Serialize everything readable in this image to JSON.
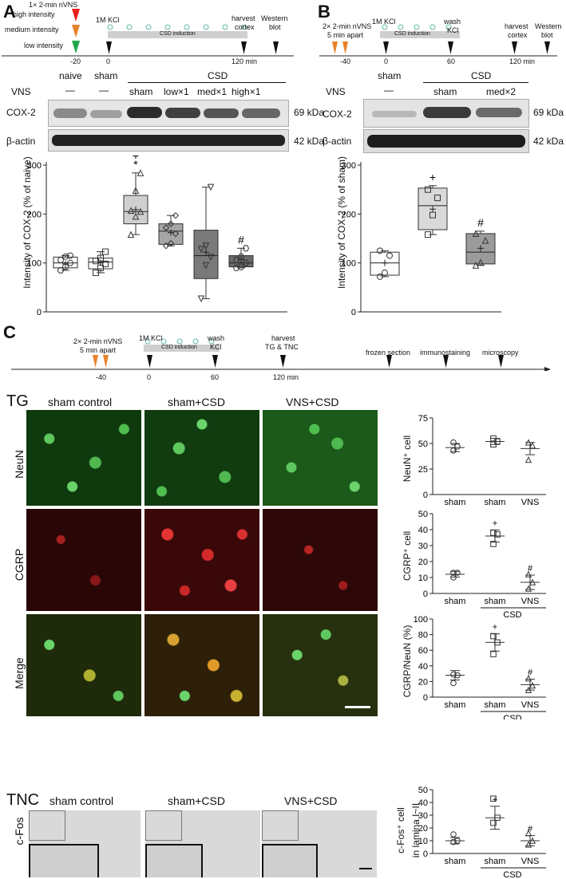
{
  "panelA": {
    "letter": "A",
    "timeline": {
      "stim_title": "1× 2-min nVNS",
      "intensities": [
        {
          "label": "high intensity",
          "color": "#e8201a"
        },
        {
          "label": "medium intensity",
          "color": "#e8832a"
        },
        {
          "label": "low intensity",
          "color": "#1faa4a"
        }
      ],
      "kcl": "1M KCl",
      "csd": "CSD induction",
      "harvest": "harvest\ncortex",
      "harvest_l1": "harvest",
      "harvest_l2": "cortex",
      "western_l1": "Western",
      "western_l2": "blot",
      "ticks": [
        "-20",
        "0",
        "120 min"
      ]
    },
    "lanes": {
      "naive": "naive",
      "sham": "sham",
      "csd": "CSD",
      "vns": "VNS",
      "dash": "—",
      "csd_groups": [
        "sham",
        "low×1",
        "med×1",
        "high×1"
      ]
    },
    "blots": [
      {
        "label": "COX-2",
        "kda": "69 kDa"
      },
      {
        "label": "β-actin",
        "kda": "42 kDa"
      }
    ],
    "ylabel": "Intensity of COX-2 (% of naive)",
    "yticks": [
      "0",
      "100",
      "200",
      "300"
    ],
    "marks": {
      "plus": "+",
      "star": "*",
      "hash": "#"
    }
  },
  "panelB": {
    "letter": "B",
    "timeline": {
      "stim_l1": "2× 2-min nVNS",
      "stim_l2": "5 min apart",
      "kcl": "1M KCl",
      "csd": "CSD induction",
      "wash_l1": "wash",
      "wash_l2": "KCl",
      "harvest_l1": "harvest",
      "harvest_l2": "cortex",
      "western_l1": "Western",
      "western_l2": "blot",
      "ticks": [
        "-40",
        "0",
        "60",
        "120 min"
      ]
    },
    "lanes": {
      "sham": "sham",
      "csd": "CSD",
      "vns": "VNS",
      "dash": "—",
      "csd_groups": [
        "sham",
        "med×2"
      ]
    },
    "blots": [
      {
        "label": "COX-2",
        "kda": "69 kDa"
      },
      {
        "label": "β-actin",
        "kda": "42 kDa"
      }
    ],
    "ylabel": "Intensity of COX-2 (% of sham)",
    "yticks": [
      "0",
      "100",
      "200",
      "300"
    ],
    "marks": {
      "plus": "+",
      "hash": "#"
    }
  },
  "panelC": {
    "letter": "C",
    "timeline": {
      "stim_l1": "2× 2-min nVNS",
      "stim_l2": "5 min apart",
      "kcl": "1M KCl",
      "csd": "CSD induction",
      "wash_l1": "wash",
      "wash_l2": "KCl",
      "harvest_l1": "harvest",
      "harvest_l2": "TG & TNC",
      "frozen": "frozen section",
      "immuno": "immunostaining",
      "micro": "microscopy",
      "ticks": [
        "-40",
        "0",
        "60",
        "120 min"
      ]
    },
    "tg": {
      "region": "TG",
      "columns": [
        "sham control",
        "sham+CSD",
        "VNS+CSD"
      ],
      "rows": [
        "NeuN",
        "CGRP",
        "Merge"
      ]
    },
    "tnc": {
      "region": "TNC",
      "columns": [
        "sham control",
        "sham+CSD",
        "VNS+CSD"
      ],
      "row": "c-Fos"
    },
    "dot_groups": [
      "sham",
      "sham",
      "VNS"
    ],
    "csd_group": "CSD"
  },
  "chart_data": [
    {
      "id": "A-cox2",
      "type": "box",
      "ylabel": "Intensity of COX-2 (% of naive)",
      "ylim": [
        0,
        300
      ],
      "categories": [
        "naive",
        "sham",
        "CSD sham",
        "CSD low×1",
        "CSD med×1",
        "CSD high×1"
      ],
      "boxes": [
        {
          "min": 85,
          "q1": 90,
          "median": 100,
          "q3": 112,
          "max": 115,
          "mean": 98,
          "marker": "circle",
          "fill": "#ffffff",
          "points": [
            85,
            92,
            100,
            106,
            113,
            115
          ]
        },
        {
          "min": 80,
          "q1": 88,
          "median": 102,
          "q3": 110,
          "max": 123,
          "mean": 100,
          "marker": "square",
          "fill": "#ffffff",
          "points": [
            80,
            90,
            98,
            104,
            110,
            123
          ]
        },
        {
          "min": 158,
          "q1": 180,
          "median": 205,
          "q3": 238,
          "max": 284,
          "mean": 209,
          "marker": "triangle",
          "fill": "#cfcfcf",
          "points": [
            158,
            195,
            205,
            207,
            248,
            284
          ]
        },
        {
          "min": 135,
          "q1": 138,
          "median": 165,
          "q3": 180,
          "max": 197,
          "mean": 162,
          "marker": "diamond",
          "fill": "#a6a6a6",
          "points": [
            135,
            140,
            160,
            172,
            180,
            197
          ]
        },
        {
          "min": 27,
          "q1": 68,
          "median": 115,
          "q3": 167,
          "max": 255,
          "mean": 122,
          "marker": "inv-triangle",
          "fill": "#7a7a7a",
          "points": [
            27,
            95,
            112,
            128,
            135,
            255
          ]
        },
        {
          "min": 90,
          "q1": 92,
          "median": 100,
          "q3": 115,
          "max": 130,
          "mean": 107,
          "marker": "hexagon",
          "fill": "#6a6a6a",
          "points": [
            90,
            92,
            100,
            106,
            113,
            130
          ]
        }
      ],
      "annotations": [
        {
          "category": "CSD sham",
          "text": "+ *"
        },
        {
          "category": "CSD high×1",
          "text": "#"
        }
      ]
    },
    {
      "id": "B-cox2",
      "type": "box",
      "ylabel": "Intensity of COX-2 (% of sham)",
      "ylim": [
        0,
        300
      ],
      "categories": [
        "sham",
        "CSD sham",
        "CSD med×2"
      ],
      "boxes": [
        {
          "min": 72,
          "q1": 75,
          "median": 100,
          "q3": 122,
          "max": 125,
          "mean": 100,
          "marker": "circle",
          "fill": "#ffffff",
          "points": [
            72,
            80,
            115,
            125
          ]
        },
        {
          "min": 158,
          "q1": 168,
          "median": 217,
          "q3": 253,
          "max": 258,
          "mean": 210,
          "marker": "square",
          "fill": "#d9d9d9",
          "points": [
            158,
            198,
            233,
            250
          ]
        },
        {
          "min": 95,
          "q1": 98,
          "median": 122,
          "q3": 160,
          "max": 165,
          "mean": 130,
          "marker": "triangle",
          "fill": "#9b9b9b",
          "points": [
            95,
            101,
            146,
            160
          ]
        }
      ],
      "annotations": [
        {
          "category": "CSD sham",
          "text": "+"
        },
        {
          "category": "CSD med×2",
          "text": "#"
        }
      ]
    },
    {
      "id": "C-neun",
      "type": "scatter",
      "ylabel": "NeuN⁺ cell",
      "ylim": [
        0,
        75
      ],
      "yticks": [
        0,
        25,
        50,
        75
      ],
      "categories": [
        "sham",
        "CSD sham",
        "CSD VNS"
      ],
      "series": [
        {
          "marker": "circle",
          "values": [
            43,
            47,
            51
          ],
          "mean": 46,
          "sd": 4
        },
        {
          "marker": "square",
          "values": [
            49,
            52,
            55
          ],
          "mean": 52,
          "sd": 3
        },
        {
          "marker": "triangle",
          "values": [
            34,
            48,
            51
          ],
          "mean": 45,
          "sd": 6
        }
      ]
    },
    {
      "id": "C-cgrp",
      "type": "scatter",
      "ylabel": "CGRP⁺ cell",
      "ylim": [
        0,
        50
      ],
      "yticks": [
        0,
        10,
        20,
        30,
        40,
        50
      ],
      "categories": [
        "sham",
        "CSD sham",
        "CSD VNS"
      ],
      "series": [
        {
          "marker": "circle",
          "values": [
            10,
            13,
            13
          ],
          "mean": 12,
          "sd": 1.7
        },
        {
          "marker": "square",
          "values": [
            31,
            37,
            38
          ],
          "mean": 36,
          "sd": 3.8
        },
        {
          "marker": "triangle",
          "values": [
            3,
            7,
            12
          ],
          "mean": 7,
          "sd": 4.5
        }
      ],
      "annotations": [
        {
          "category": "CSD sham",
          "text": "+"
        },
        {
          "category": "CSD VNS",
          "text": "#"
        }
      ]
    },
    {
      "id": "C-ratio",
      "type": "scatter",
      "ylabel": "CGRP/NeuN (%)",
      "ylim": [
        0,
        100
      ],
      "yticks": [
        0,
        20,
        40,
        60,
        80,
        100
      ],
      "categories": [
        "sham",
        "CSD sham",
        "CSD VNS"
      ],
      "series": [
        {
          "marker": "circle",
          "values": [
            18,
            28,
            29
          ],
          "mean": 28,
          "sd": 6
        },
        {
          "marker": "square",
          "values": [
            55,
            70,
            78
          ],
          "mean": 70,
          "sd": 11
        },
        {
          "marker": "triangle",
          "values": [
            9,
            15,
            24
          ],
          "mean": 16,
          "sd": 7
        }
      ],
      "annotations": [
        {
          "category": "CSD sham",
          "text": "+"
        },
        {
          "category": "CSD VNS",
          "text": "#"
        }
      ]
    },
    {
      "id": "C-cfos",
      "type": "scatter",
      "ylabel": "c-Fos⁺ cell in lamina I~II",
      "ylabel_l1": "c-Fos⁺ cell",
      "ylabel_l2": "in lamina I~II",
      "ylim": [
        0,
        50
      ],
      "yticks": [
        0,
        10,
        20,
        30,
        40,
        50
      ],
      "categories": [
        "sham",
        "CSD sham",
        "CSD VNS"
      ],
      "series": [
        {
          "marker": "circle",
          "values": [
            9,
            10,
            15
          ],
          "mean": 10,
          "sd": 2.5
        },
        {
          "marker": "square",
          "values": [
            24,
            28,
            43
          ],
          "mean": 28,
          "sd": 9
        },
        {
          "marker": "triangle",
          "values": [
            7,
            10,
            16
          ],
          "mean": 10,
          "sd": 4
        }
      ],
      "annotations": [
        {
          "category": "CSD sham",
          "text": "+"
        },
        {
          "category": "CSD VNS",
          "text": "#"
        }
      ]
    }
  ]
}
